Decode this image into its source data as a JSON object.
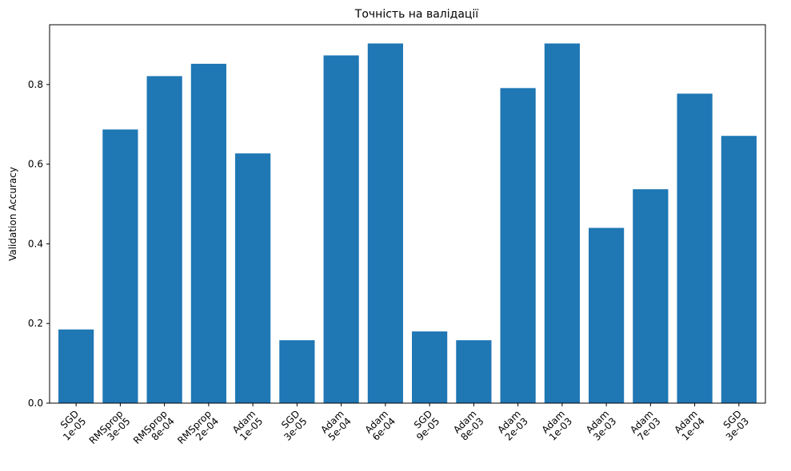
{
  "chart_data": {
    "type": "bar",
    "title": "Точність на валідації",
    "xlabel": "",
    "ylabel": "Validation Accuracy",
    "ylim": [
      0,
      0.95
    ],
    "yticks": [
      "0.0",
      "0.2",
      "0.4",
      "0.6",
      "0.8"
    ],
    "grid": false,
    "color": "#1f77b4",
    "categories": [
      [
        "SGD",
        "1e-05"
      ],
      [
        "RMSprop",
        "3e-05"
      ],
      [
        "RMSprop",
        "8e-04"
      ],
      [
        "RMSprop",
        "2e-04"
      ],
      [
        "Adam",
        "1e-05"
      ],
      [
        "SGD",
        "3e-05"
      ],
      [
        "Adam",
        "5e-04"
      ],
      [
        "Adam",
        "6e-04"
      ],
      [
        "SGD",
        "9e-05"
      ],
      [
        "Adam",
        "8e-03"
      ],
      [
        "Adam",
        "2e-03"
      ],
      [
        "Adam",
        "1e-03"
      ],
      [
        "Adam",
        "3e-03"
      ],
      [
        "Adam",
        "7e-03"
      ],
      [
        "Adam",
        "1e-04"
      ],
      [
        "SGD",
        "3e-03"
      ]
    ],
    "values": [
      0.185,
      0.687,
      0.821,
      0.852,
      0.627,
      0.158,
      0.873,
      0.903,
      0.18,
      0.158,
      0.791,
      0.903,
      0.44,
      0.537,
      0.777,
      0.671
    ]
  }
}
